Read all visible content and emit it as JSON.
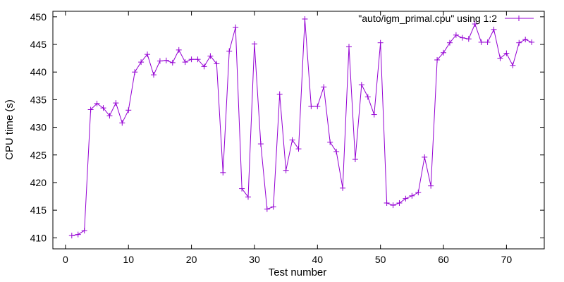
{
  "chart_data": {
    "type": "line",
    "title": "",
    "xlabel": "Test number",
    "ylabel": "CPU time (s)",
    "xlim": [
      -2,
      76
    ],
    "ylim": [
      408,
      451
    ],
    "x_ticks": [
      0,
      10,
      20,
      30,
      40,
      50,
      60,
      70
    ],
    "y_ticks": [
      410,
      415,
      420,
      425,
      430,
      435,
      440,
      445,
      450
    ],
    "grid": false,
    "legend_position": "top-right",
    "series": [
      {
        "name": "\"auto/igm_primal.cpu\" using 1:2",
        "color": "#9400d3",
        "marker": "plus",
        "x": [
          1,
          2,
          3,
          4,
          5,
          6,
          7,
          8,
          9,
          10,
          11,
          12,
          13,
          14,
          15,
          16,
          17,
          18,
          19,
          20,
          21,
          22,
          23,
          24,
          25,
          26,
          27,
          28,
          29,
          30,
          31,
          32,
          33,
          34,
          35,
          36,
          37,
          38,
          39,
          40,
          41,
          42,
          43,
          44,
          45,
          46,
          47,
          48,
          49,
          50,
          51,
          52,
          53,
          54,
          55,
          56,
          57,
          58,
          59,
          60,
          61,
          62,
          63,
          64,
          65,
          66,
          67,
          68,
          69,
          70,
          71,
          72,
          73,
          74
        ],
        "y": [
          410.4,
          410.6,
          411.3,
          433.2,
          434.3,
          433.5,
          432.1,
          434.4,
          430.8,
          433.1,
          440.0,
          441.8,
          443.2,
          439.5,
          442.0,
          442.1,
          441.7,
          444.0,
          441.8,
          442.3,
          442.3,
          441.0,
          442.9,
          441.5,
          421.8,
          443.8,
          448.1,
          418.9,
          417.4,
          445.1,
          427.0,
          415.2,
          415.6,
          436.0,
          422.2,
          427.7,
          426.1,
          449.6,
          433.8,
          433.8,
          437.3,
          427.3,
          425.6,
          419.0,
          444.6,
          424.2,
          437.7,
          435.5,
          432.3,
          445.3,
          416.3,
          415.9,
          416.3,
          417.1,
          417.6,
          418.2,
          424.6,
          419.4,
          442.2,
          443.5,
          445.3,
          446.7,
          446.2,
          446.0,
          448.7,
          445.4,
          445.4,
          447.7,
          442.5,
          443.4,
          441.2,
          445.3,
          445.9,
          445.4
        ]
      }
    ]
  }
}
